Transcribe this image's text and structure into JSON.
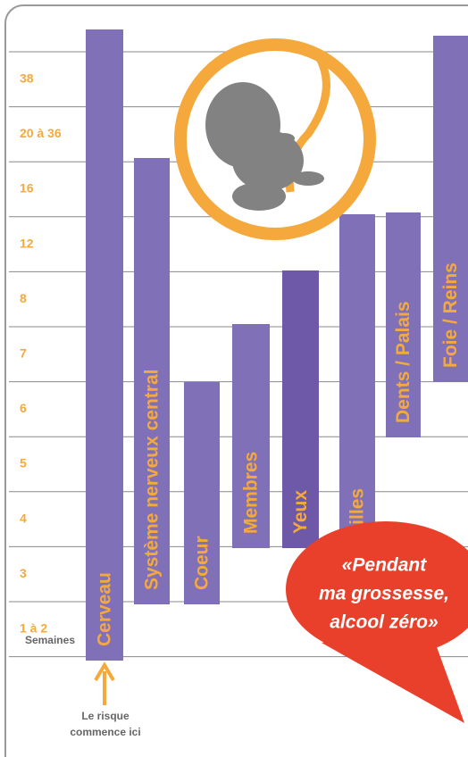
{
  "axis": {
    "title": "Semaines",
    "weeks": [
      "38",
      "20 à 36",
      "16",
      "12",
      "8",
      "7",
      "6",
      "5",
      "4",
      "3",
      "1 à 2"
    ]
  },
  "bars": [
    "Cerveau",
    "Système nerveux central",
    "Coeur",
    "Membres",
    "Yeux",
    "Oreilles",
    "Dents / Palais",
    "Foie / Reins"
  ],
  "note": [
    "Le risque",
    "commence ici"
  ],
  "bubble": [
    "«Pendant",
    "ma grossesse,",
    "alcool zéro»"
  ]
}
